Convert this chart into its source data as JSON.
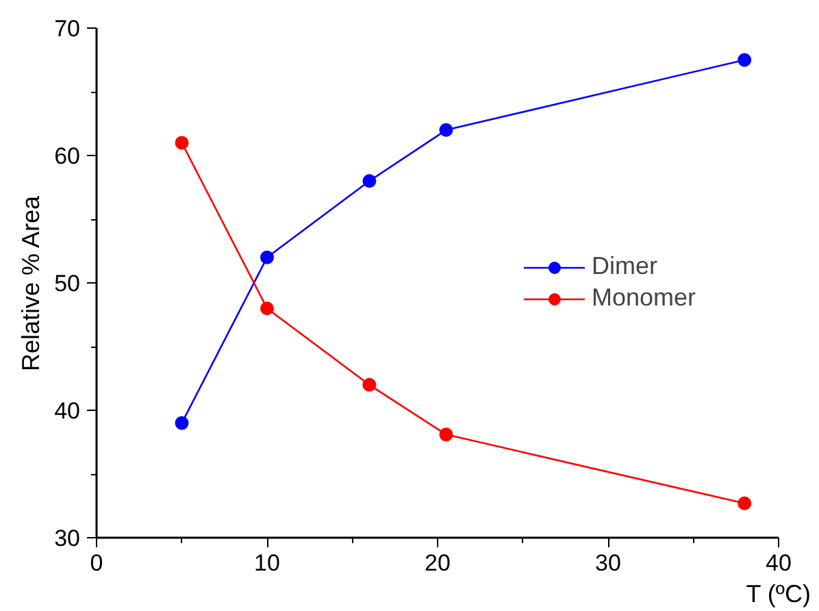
{
  "chart_data": {
    "type": "line",
    "xlabel": "T (ºC)",
    "ylabel": "Relative % Area",
    "x": [
      5,
      10,
      16,
      20.5,
      38
    ],
    "series": [
      {
        "name": "Dimer",
        "color": "#0000ff",
        "values": [
          39,
          52,
          58,
          62,
          67.5
        ]
      },
      {
        "name": "Monomer",
        "color": "#ff0000",
        "values": [
          61,
          48,
          42,
          38.1,
          32.7
        ]
      }
    ],
    "xlim": [
      0,
      40
    ],
    "ylim": [
      30,
      70
    ],
    "xticks": [
      0,
      10,
      20,
      30,
      40
    ],
    "yticks": [
      30,
      40,
      50,
      60,
      70
    ],
    "grid": false,
    "legend": "right",
    "marker": "circle",
    "line_style": "solid"
  }
}
